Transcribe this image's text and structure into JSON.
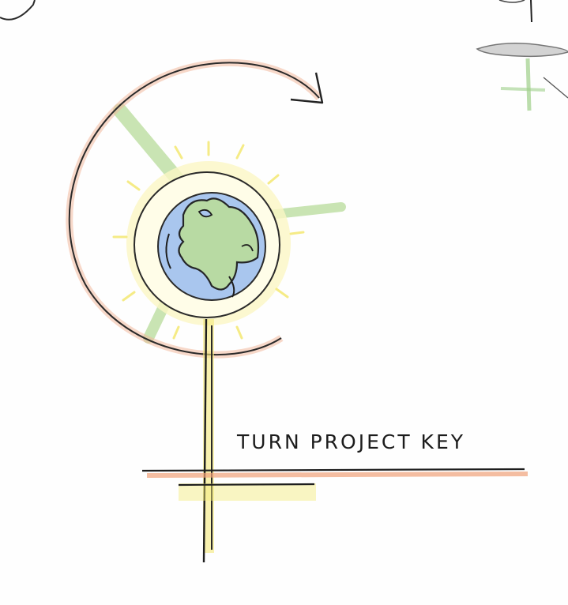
{
  "caption": "TURN PROJECT KEY",
  "colors": {
    "ink": "#1e1e1e",
    "orange": "#f1a27a",
    "yellow": "#f5ea7a",
    "green": "#b8dc9a",
    "blue": "#9fc0ea"
  },
  "icons": [
    "globe-icon",
    "rotate-arrow-icon"
  ]
}
